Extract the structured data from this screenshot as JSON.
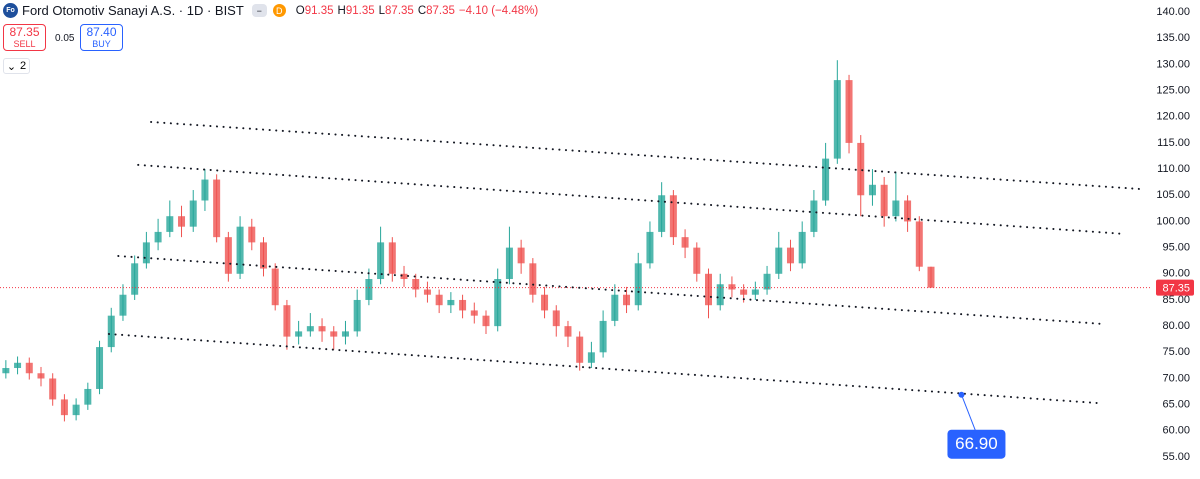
{
  "header": {
    "logo": "Fo",
    "title": "Ford Otomotiv Sanayi A.S. · 1D · BIST",
    "badge": "D",
    "ohlc": [
      {
        "label": "O",
        "value": "91.35"
      },
      {
        "label": "H",
        "value": "91.35"
      },
      {
        "label": "L",
        "value": "87.35"
      },
      {
        "label": "C",
        "value": "87.35"
      }
    ],
    "change": "−4.10 (−4.48%)"
  },
  "trade": {
    "sell_price": "87.35",
    "sell_label": "SELL",
    "spread": "0.05",
    "buy_price": "87.40",
    "buy_label": "BUY"
  },
  "indicators_count": "2",
  "chart_data": {
    "type": "candlestick",
    "up_color": "#26a69a",
    "down_color": "#ef5350",
    "xlim": [
      -0.5,
      97.7
    ],
    "ylim": [
      50.8,
      142.3
    ],
    "yticks": [
      {
        "value": 140,
        "label": "140.00"
      },
      {
        "value": 135,
        "label": "135.00"
      },
      {
        "value": 130,
        "label": "130.00"
      },
      {
        "value": 125,
        "label": "125.00"
      },
      {
        "value": 120,
        "label": "120.00"
      },
      {
        "value": 115,
        "label": "115.00"
      },
      {
        "value": 110,
        "label": "110.00"
      },
      {
        "value": 105,
        "label": "105.00"
      },
      {
        "value": 100,
        "label": "100.00"
      },
      {
        "value": 95,
        "label": "95.00"
      },
      {
        "value": 90,
        "label": "90.00"
      },
      {
        "value": 85,
        "label": "85.00"
      },
      {
        "value": 80,
        "label": "80.00"
      },
      {
        "value": 75,
        "label": "75.00"
      },
      {
        "value": 70,
        "label": "70.00"
      },
      {
        "value": 65,
        "label": "65.00"
      },
      {
        "value": 60,
        "label": "60.00"
      },
      {
        "value": 55,
        "label": "55.00"
      }
    ],
    "ohlc": [
      [
        71,
        73.5,
        70,
        72
      ],
      [
        72,
        74.2,
        70.8,
        73
      ],
      [
        73,
        74,
        69.8,
        71
      ],
      [
        71,
        72.2,
        68.5,
        70
      ],
      [
        70,
        71,
        64.8,
        66
      ],
      [
        66,
        67,
        61.8,
        63
      ],
      [
        63,
        66.2,
        62,
        65
      ],
      [
        65,
        69.2,
        64,
        68
      ],
      [
        68,
        77.2,
        67,
        76
      ],
      [
        76,
        83.5,
        75,
        82
      ],
      [
        82,
        88,
        81,
        86
      ],
      [
        86,
        93.5,
        85,
        92
      ],
      [
        92,
        98,
        91,
        96
      ],
      [
        96,
        100.5,
        94.5,
        98
      ],
      [
        98,
        104,
        97,
        101
      ],
      [
        101,
        103,
        97,
        99
      ],
      [
        99,
        106,
        98,
        104
      ],
      [
        104,
        110,
        102,
        108
      ],
      [
        108,
        109,
        96,
        97
      ],
      [
        97,
        98,
        88.5,
        90
      ],
      [
        90,
        101,
        89,
        99
      ],
      [
        99,
        100.5,
        94.5,
        96
      ],
      [
        96,
        97,
        89.5,
        91
      ],
      [
        91,
        92,
        83,
        84
      ],
      [
        84,
        85,
        75.5,
        78
      ],
      [
        78,
        81,
        76.5,
        79
      ],
      [
        79,
        82.5,
        78,
        80
      ],
      [
        80,
        81.5,
        77,
        79
      ],
      [
        79,
        80,
        75.5,
        78
      ],
      [
        78,
        81,
        76.5,
        79
      ],
      [
        79,
        87,
        78,
        85
      ],
      [
        85,
        91,
        84,
        89
      ],
      [
        89,
        99,
        88,
        96
      ],
      [
        96,
        97,
        88.5,
        90
      ],
      [
        90,
        91.5,
        87.5,
        89
      ],
      [
        89,
        90,
        85.5,
        87
      ],
      [
        87,
        88.5,
        84.5,
        86
      ],
      [
        86,
        87,
        82.5,
        84
      ],
      [
        84,
        86.5,
        82.5,
        85
      ],
      [
        85,
        86,
        81.5,
        83
      ],
      [
        83,
        84.5,
        80.5,
        82
      ],
      [
        82,
        83,
        78.5,
        80
      ],
      [
        80,
        91,
        79,
        89
      ],
      [
        89,
        99,
        88,
        95
      ],
      [
        95,
        96.5,
        90,
        92
      ],
      [
        92,
        93,
        84.5,
        86
      ],
      [
        86,
        87.5,
        81.5,
        83
      ],
      [
        83,
        84,
        78,
        80
      ],
      [
        80,
        81,
        76,
        78
      ],
      [
        78,
        79,
        71.5,
        73
      ],
      [
        73,
        77,
        72,
        75
      ],
      [
        75,
        83,
        74,
        81
      ],
      [
        81,
        88,
        80,
        86
      ],
      [
        86,
        87.5,
        82.5,
        84
      ],
      [
        84,
        94,
        83,
        92
      ],
      [
        92,
        100,
        91,
        98
      ],
      [
        98,
        107.5,
        97,
        105
      ],
      [
        105,
        106,
        95.5,
        97
      ],
      [
        97,
        98.5,
        93,
        95
      ],
      [
        95,
        96,
        88.5,
        90
      ],
      [
        90,
        91,
        81.5,
        84
      ],
      [
        84,
        90,
        83,
        88
      ],
      [
        88,
        89.5,
        85.5,
        87
      ],
      [
        87,
        88,
        84.5,
        86
      ],
      [
        86,
        88.5,
        85,
        87
      ],
      [
        87,
        91.5,
        86,
        90
      ],
      [
        90,
        98,
        89,
        95
      ],
      [
        95,
        96.5,
        90.5,
        92
      ],
      [
        92,
        100,
        91,
        98
      ],
      [
        98,
        106,
        97,
        104
      ],
      [
        104,
        115,
        103,
        112
      ],
      [
        112,
        130.8,
        111,
        127
      ],
      [
        127,
        128,
        113,
        115
      ],
      [
        115,
        116.5,
        101,
        105
      ],
      [
        105,
        110,
        103,
        107
      ],
      [
        107,
        108.5,
        99,
        101
      ],
      [
        101,
        109.5,
        100,
        104
      ],
      [
        104,
        105,
        98,
        100
      ],
      [
        100,
        101,
        90.5,
        91.35
      ],
      [
        91.35,
        91.35,
        87.35,
        87.35
      ]
    ],
    "trend_lines": [
      {
        "x": [
          12.4,
          96.8
        ],
        "y": [
          119.0,
          106.2
        ]
      },
      {
        "x": [
          11.3,
          95.6
        ],
        "y": [
          110.8,
          97.6
        ]
      },
      {
        "x": [
          9.6,
          93.8
        ],
        "y": [
          93.4,
          80.4
        ]
      },
      {
        "x": [
          8.8,
          93.3
        ],
        "y": [
          78.5,
          65.3
        ]
      }
    ],
    "annotation": {
      "x": 81.6,
      "y": {
        "value": 66.9,
        "label": "66.90"
      },
      "color": "#2962ff"
    },
    "last_price": 87.35,
    "last_price_color": "#f23645"
  }
}
